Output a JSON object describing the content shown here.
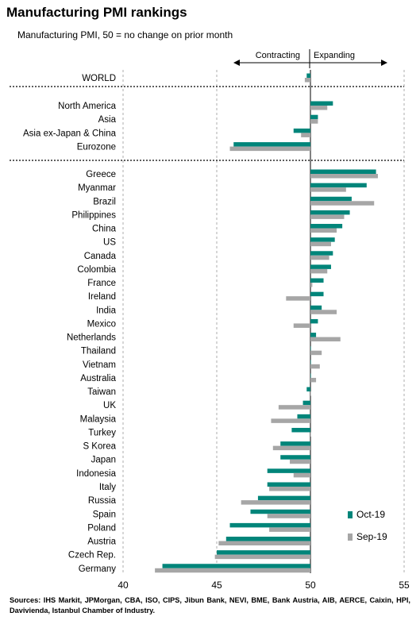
{
  "title": "Manufacturing PMI rankings",
  "subtitle": "Manufacturing PMI, 50 = no change on prior month",
  "annotations": {
    "contracting": "Contracting",
    "expanding": "Expanding"
  },
  "source": "Sources: IHS Markit, JPMorgan, CBA, ISO, CIPS, Jibun Bank, NEVI, BME, Bank Austria, AIB, AERCE, Caixin, HPI, Davivienda, Istanbul Chamber of Industry.",
  "colors": {
    "oct": "#00857a",
    "sep": "#a6a6a6",
    "gridline": "#999999"
  },
  "chart_data": {
    "type": "bar",
    "orientation": "horizontal",
    "baseline": 50,
    "xlim": [
      40,
      55
    ],
    "xticks": [
      "40",
      "45",
      "50",
      "55"
    ],
    "legend_position": "bottom-right",
    "grid": "vertical dashed at ticks",
    "categories": [
      "WORLD",
      "North America",
      "Asia",
      "Asia ex-Japan & China",
      "Eurozone",
      "Greece",
      "Myanmar",
      "Brazil",
      "Philippines",
      "China",
      "US",
      "Canada",
      "Colombia",
      "France",
      "Ireland",
      "India",
      "Mexico",
      "Netherlands",
      "Thailand",
      "Vietnam",
      "Australia",
      "Taiwan",
      "UK",
      "Malaysia",
      "Turkey",
      "S Korea",
      "Japan",
      "Indonesia",
      "Italy",
      "Russia",
      "Spain",
      "Poland",
      "Austria",
      "Czech Rep.",
      "Germany"
    ],
    "series": [
      {
        "name": "Oct-19",
        "values": [
          49.8,
          51.2,
          50.4,
          49.1,
          45.9,
          53.5,
          53.0,
          52.2,
          52.1,
          51.7,
          51.3,
          51.2,
          51.1,
          50.7,
          50.7,
          50.6,
          50.4,
          50.3,
          50.0,
          50.0,
          50.0,
          49.8,
          49.6,
          49.3,
          49.0,
          48.4,
          48.4,
          47.7,
          47.7,
          47.2,
          46.8,
          45.7,
          45.5,
          45.0,
          42.1
        ]
      },
      {
        "name": "Sep-19",
        "values": [
          49.7,
          50.9,
          50.4,
          49.5,
          45.7,
          53.6,
          51.9,
          53.4,
          51.8,
          51.4,
          51.1,
          51.0,
          50.9,
          50.1,
          48.7,
          51.4,
          49.1,
          51.6,
          50.6,
          50.5,
          50.3,
          50.0,
          48.3,
          47.9,
          50.0,
          48.0,
          48.9,
          49.1,
          47.8,
          46.3,
          47.7,
          47.8,
          45.1,
          44.9,
          41.7
        ]
      }
    ]
  }
}
